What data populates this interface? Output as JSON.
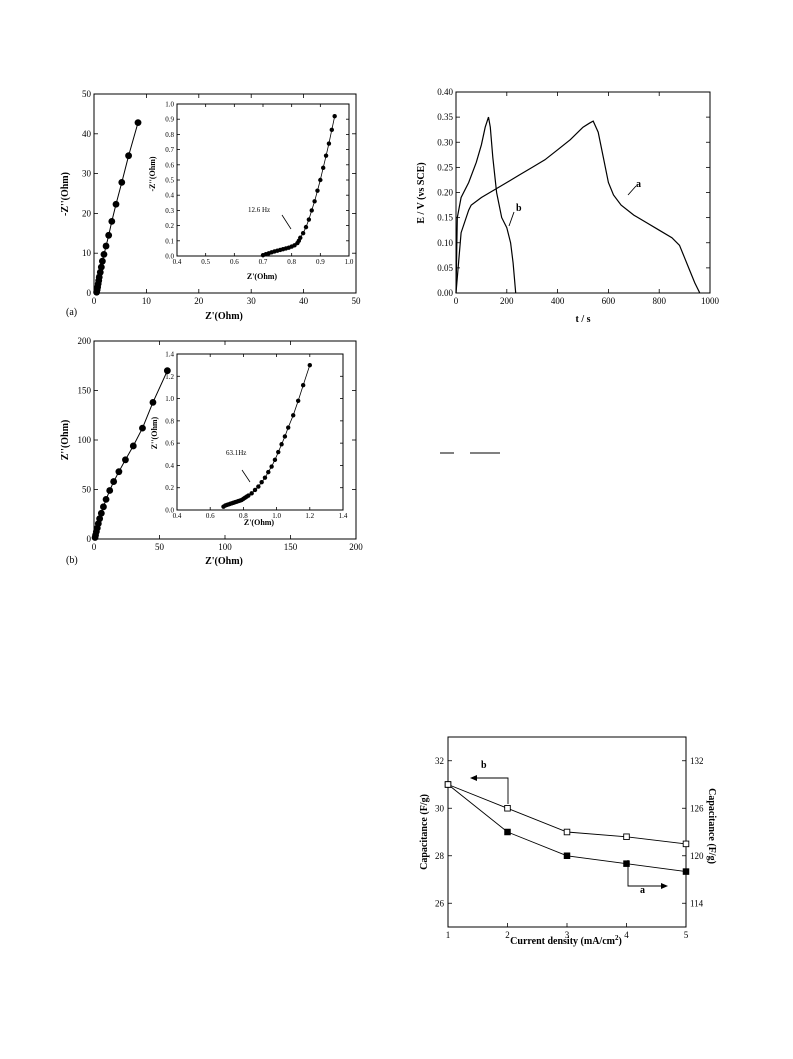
{
  "chart_data": [
    {
      "id": "eis_a",
      "type": "scatter",
      "panel_label": "(a)",
      "xlabel": "Z'(Ohm)",
      "ylabel": "-Z''(Ohm)",
      "xlim": [
        0,
        50
      ],
      "ylim": [
        0,
        50
      ],
      "xticks": [
        0,
        10,
        20,
        30,
        40,
        50
      ],
      "yticks": [
        0,
        10,
        20,
        30,
        40,
        50
      ],
      "series": [
        {
          "x": [
            0.5,
            0.6,
            0.7,
            0.8,
            0.9,
            1.0,
            1.2,
            1.4,
            1.6,
            1.9,
            2.3,
            2.8,
            3.4,
            4.2,
            5.3,
            6.6,
            8.4
          ],
          "y": [
            0.2,
            0.8,
            1.5,
            2.3,
            3.1,
            4.0,
            5.2,
            6.5,
            8.0,
            9.7,
            11.8,
            14.5,
            18.0,
            22.3,
            27.8,
            34.5,
            42.8
          ]
        }
      ],
      "inset": {
        "xlabel": "Z'(Ohm)",
        "ylabel": "-Z''(Ohm)",
        "xlim": [
          0.4,
          1.0
        ],
        "ylim": [
          0.0,
          1.0
        ],
        "xticks": [
          "0.4",
          "0.5",
          "0.6",
          "0.7",
          "0.8",
          "0.9",
          "1.0"
        ],
        "yticks": [
          "0.0",
          "0.1",
          "0.2",
          "0.3",
          "0.4",
          "0.5",
          "0.6",
          "0.7",
          "0.8",
          "0.9",
          "1.0"
        ],
        "annotation": "12.6 Hz",
        "series": [
          {
            "x": [
              0.7,
              0.71,
              0.72,
              0.73,
              0.74,
              0.75,
              0.76,
              0.77,
              0.78,
              0.79,
              0.8,
              0.81,
              0.82,
              0.825,
              0.83,
              0.84,
              0.85,
              0.86,
              0.87,
              0.88,
              0.89,
              0.9,
              0.91,
              0.92,
              0.93,
              0.94,
              0.95
            ],
            "y": [
              0.005,
              0.012,
              0.018,
              0.024,
              0.03,
              0.035,
              0.04,
              0.045,
              0.05,
              0.055,
              0.062,
              0.07,
              0.085,
              0.1,
              0.12,
              0.15,
              0.19,
              0.24,
              0.3,
              0.36,
              0.43,
              0.5,
              0.58,
              0.66,
              0.74,
              0.83,
              0.92
            ]
          }
        ]
      }
    },
    {
      "id": "eis_b",
      "type": "scatter",
      "panel_label": "(b)",
      "xlabel": "Z'(Ohm)",
      "ylabel": "Z''(Ohm)",
      "xlim": [
        0,
        200
      ],
      "ylim": [
        0,
        200
      ],
      "xticks": [
        0,
        50,
        100,
        150,
        200
      ],
      "yticks": [
        0,
        50,
        100,
        150,
        200
      ],
      "series": [
        {
          "x": [
            0.8,
            1.2,
            1.8,
            2.5,
            3.3,
            4.3,
            5.6,
            7.2,
            9.2,
            12,
            15,
            19,
            24,
            30,
            37,
            45,
            56
          ],
          "y": [
            1.5,
            4,
            7.5,
            11,
            15.5,
            20.5,
            26,
            32.5,
            40,
            49,
            58,
            68,
            80,
            94,
            112,
            138,
            170
          ]
        }
      ],
      "inset": {
        "xlabel": "Z'(Ohm)",
        "ylabel": "Z''(Ohm)",
        "xlim": [
          0.4,
          1.4
        ],
        "ylim": [
          0.0,
          1.4
        ],
        "xticks": [
          "0.4",
          "0.6",
          "0.8",
          "1.0",
          "1.2",
          "1.4"
        ],
        "yticks": [
          "0.0",
          "0.2",
          "0.4",
          "0.6",
          "0.8",
          "1.0",
          "1.2",
          "1.4"
        ],
        "annotation": "63.1Hz",
        "series": [
          {
            "x": [
              0.68,
              0.69,
              0.7,
              0.71,
              0.72,
              0.73,
              0.74,
              0.75,
              0.76,
              0.77,
              0.78,
              0.79,
              0.8,
              0.81,
              0.82,
              0.83,
              0.85,
              0.87,
              0.89,
              0.91,
              0.93,
              0.95,
              0.97,
              0.99,
              1.01,
              1.03,
              1.05,
              1.07,
              1.1,
              1.13,
              1.16,
              1.2
            ],
            "y": [
              0.03,
              0.04,
              0.045,
              0.05,
              0.055,
              0.06,
              0.065,
              0.07,
              0.075,
              0.08,
              0.085,
              0.09,
              0.1,
              0.11,
              0.12,
              0.13,
              0.15,
              0.18,
              0.21,
              0.25,
              0.29,
              0.34,
              0.39,
              0.45,
              0.52,
              0.59,
              0.66,
              0.74,
              0.85,
              0.98,
              1.12,
              1.3
            ]
          }
        ]
      }
    },
    {
      "id": "charge_discharge",
      "type": "line",
      "xlabel": "t / s",
      "ylabel": "E / V (vs SCE)",
      "xlim": [
        0,
        1000
      ],
      "ylim": [
        0.0,
        0.4
      ],
      "xticks": [
        "0",
        "200",
        "400",
        "600",
        "800",
        "1000"
      ],
      "yticks": [
        "0.00",
        "0.05",
        "0.10",
        "0.15",
        "0.20",
        "0.25",
        "0.30",
        "0.35",
        "0.40"
      ],
      "series": [
        {
          "name": "a",
          "x": [
            0,
            20,
            50,
            60,
            100,
            150,
            200,
            250,
            300,
            350,
            400,
            450,
            500,
            525,
            540,
            560,
            580,
            600,
            620,
            650,
            700,
            750,
            800,
            850,
            880,
            900,
            920,
            940,
            960
          ],
          "y": [
            0,
            0.12,
            0.165,
            0.175,
            0.19,
            0.205,
            0.22,
            0.235,
            0.25,
            0.265,
            0.285,
            0.305,
            0.33,
            0.338,
            0.342,
            0.32,
            0.27,
            0.22,
            0.195,
            0.175,
            0.155,
            0.14,
            0.125,
            0.11,
            0.095,
            0.07,
            0.045,
            0.02,
            0
          ]
        },
        {
          "name": "b",
          "x": [
            0,
            5,
            20,
            50,
            80,
            100,
            115,
            128,
            135,
            145,
            160,
            180,
            200,
            215,
            225,
            230,
            235
          ],
          "y": [
            0,
            0.15,
            0.19,
            0.22,
            0.26,
            0.295,
            0.33,
            0.35,
            0.33,
            0.27,
            0.2,
            0.15,
            0.13,
            0.1,
            0.06,
            0.03,
            0
          ]
        }
      ]
    },
    {
      "id": "capacitance",
      "type": "line",
      "xlabel": "Current density (mA/cm",
      "xlabel_sup": "2",
      "xlabel_tail": ")",
      "ylabel": "Capacitance (F/g)",
      "y2label": "Capacitance (F/g)",
      "xlim": [
        1,
        5
      ],
      "ylim": [
        25,
        33
      ],
      "y2lim": [
        111,
        135
      ],
      "xticks": [
        "1",
        "2",
        "3",
        "4",
        "5"
      ],
      "yticks": [
        "26",
        "28",
        "30",
        "32"
      ],
      "y2ticks": [
        "114",
        "120",
        "126",
        "132"
      ],
      "series": [
        {
          "name": "a",
          "axis": "right",
          "marker": "filled-square",
          "x": [
            1,
            2,
            3,
            4,
            5
          ],
          "y": [
            129,
            123,
            120,
            119,
            118
          ]
        },
        {
          "name": "b",
          "axis": "left",
          "marker": "open-square",
          "x": [
            1,
            2,
            3,
            4,
            5
          ],
          "y": [
            31.0,
            30.0,
            29.0,
            28.8,
            28.5
          ]
        }
      ]
    }
  ]
}
